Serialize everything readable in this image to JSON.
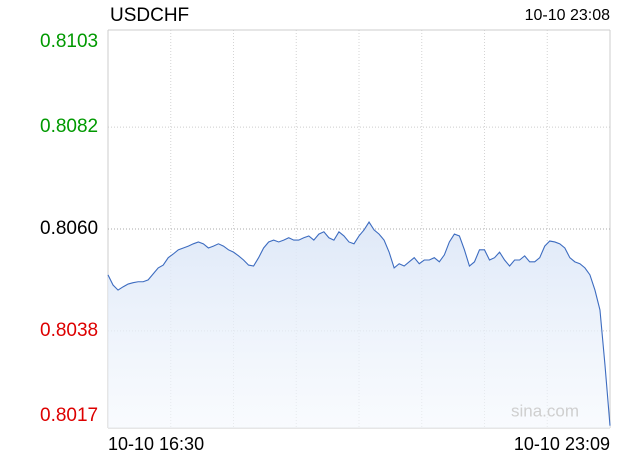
{
  "chart_data": {
    "type": "line",
    "title": "USDCHF",
    "timestamp": "10-10 23:08",
    "watermark": "sina.com",
    "categories": [
      "10-10 16:30",
      null,
      null,
      null,
      null,
      null,
      null,
      null,
      null,
      null,
      null,
      null,
      null,
      null,
      null,
      null,
      null,
      null,
      null,
      null,
      null,
      null,
      null,
      null,
      null,
      null,
      null,
      null,
      null,
      null,
      null,
      null,
      null,
      null,
      null,
      null,
      null,
      null,
      null,
      null,
      null,
      null,
      null,
      null,
      null,
      null,
      null,
      null,
      null,
      null,
      null,
      null,
      null,
      null,
      null,
      null,
      null,
      null,
      null,
      null,
      null,
      null,
      null,
      null,
      null,
      null,
      null,
      null,
      null,
      null,
      null,
      null,
      null,
      null,
      null,
      null,
      null,
      null,
      null,
      null,
      null,
      null,
      null,
      null,
      null,
      null,
      null,
      null,
      null,
      null,
      null,
      null,
      null,
      null,
      null,
      null,
      null,
      null,
      null,
      null,
      "10-10 23:09"
    ],
    "series": [
      {
        "name": "USDCHF",
        "color": "#3d6cc0",
        "values": [
          0.80501,
          0.80479,
          0.80468,
          0.80475,
          0.80481,
          0.80484,
          0.80486,
          0.80486,
          0.8049,
          0.80503,
          0.80516,
          0.80522,
          0.80538,
          0.80546,
          0.80555,
          0.80559,
          0.80563,
          0.80568,
          0.80572,
          0.80568,
          0.80559,
          0.80563,
          0.80568,
          0.80563,
          0.80555,
          0.8055,
          0.80542,
          0.80533,
          0.80522,
          0.8052,
          0.80538,
          0.80559,
          0.80572,
          0.80576,
          0.80572,
          0.80576,
          0.80581,
          0.80576,
          0.80576,
          0.80581,
          0.80585,
          0.80576,
          0.80589,
          0.80594,
          0.80581,
          0.80576,
          0.80594,
          0.80585,
          0.80572,
          0.80568,
          0.80585,
          0.80598,
          0.80615,
          0.80598,
          0.80589,
          0.80576,
          0.8055,
          0.80516,
          0.80525,
          0.8052,
          0.80529,
          0.80538,
          0.80525,
          0.80533,
          0.80533,
          0.80538,
          0.80529,
          0.80544,
          0.80572,
          0.80589,
          0.80585,
          0.80555,
          0.8052,
          0.80529,
          0.80555,
          0.80555,
          0.80533,
          0.80538,
          0.8055,
          0.80533,
          0.8052,
          0.80533,
          0.80533,
          0.80542,
          0.80529,
          0.80529,
          0.80538,
          0.80563,
          0.80574,
          0.80572,
          0.80568,
          0.80559,
          0.80538,
          0.80529,
          0.80525,
          0.80516,
          0.80501,
          0.80468,
          0.80425,
          0.80306,
          0.80175
        ]
      }
    ],
    "ylim": [
      0.8017,
      0.8103
    ],
    "yticks": [
      0.8103,
      0.8082,
      {
        "value": 0.806,
        "label": "0.8060"
      },
      0.8038,
      0.8017
    ],
    "up_color": "#009900",
    "down_color": "#dd0000",
    "flat_color": "#000000",
    "grid": true
  }
}
